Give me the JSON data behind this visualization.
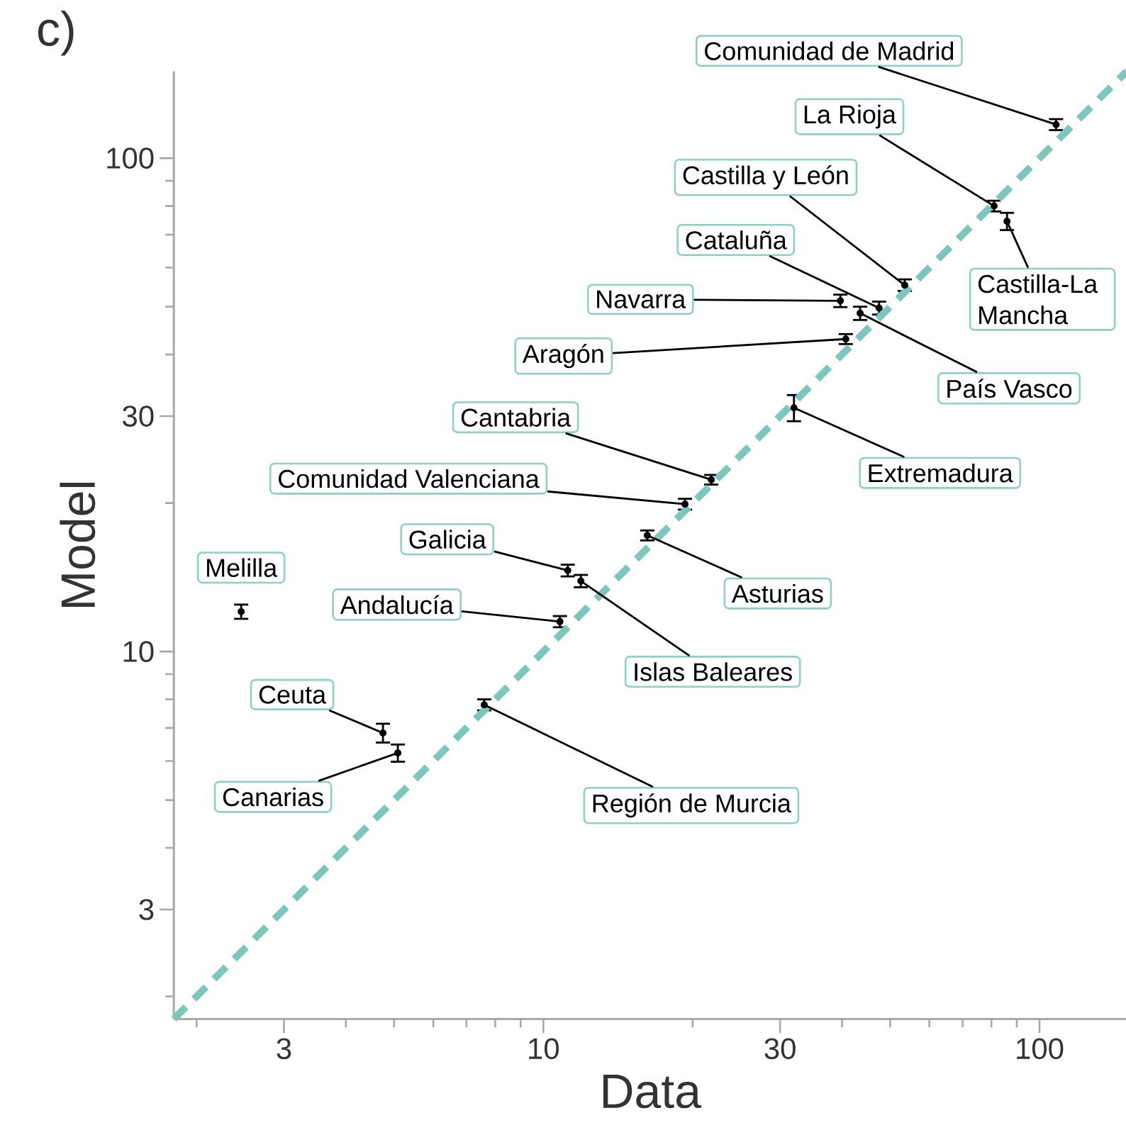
{
  "chart_data": {
    "type": "scatter",
    "title": "c)",
    "xlabel": "Data",
    "ylabel": "Model",
    "log": "xy",
    "xlim": [
      1.8,
      150
    ],
    "ylim": [
      1.8,
      150
    ],
    "xticks": [
      {
        "value": 2,
        "label": null
      },
      3,
      {
        "value": 4,
        "label": null
      },
      {
        "value": 5,
        "label": null
      },
      {
        "value": 6,
        "label": null
      },
      {
        "value": 7,
        "label": null
      },
      {
        "value": 8,
        "label": null
      },
      {
        "value": 9,
        "label": null
      },
      10,
      {
        "value": 20,
        "label": null
      },
      30,
      {
        "value": 40,
        "label": null
      },
      {
        "value": 50,
        "label": null
      },
      {
        "value": 60,
        "label": null
      },
      {
        "value": 70,
        "label": null
      },
      {
        "value": 80,
        "label": null
      },
      {
        "value": 90,
        "label": null
      },
      100
    ],
    "yticks": [
      {
        "value": 2,
        "label": null
      },
      3,
      {
        "value": 4,
        "label": null
      },
      {
        "value": 5,
        "label": null
      },
      {
        "value": 6,
        "label": null
      },
      {
        "value": 7,
        "label": null
      },
      {
        "value": 8,
        "label": null
      },
      {
        "value": 9,
        "label": null
      },
      10,
      {
        "value": 20,
        "label": null
      },
      30,
      {
        "value": 40,
        "label": null
      },
      {
        "value": 50,
        "label": null
      },
      {
        "value": 60,
        "label": null
      },
      {
        "value": 70,
        "label": null
      },
      {
        "value": 80,
        "label": null
      },
      {
        "value": 90,
        "label": null
      },
      100
    ],
    "series": [
      {
        "color": "#000000",
        "x": [
          108,
          81,
          86,
          53.5,
          47.5,
          43.5,
          39.7,
          40.7,
          32,
          21.8,
          19.3,
          16.2,
          11.2,
          11.9,
          10.8,
          2.46,
          4.75,
          5.09,
          7.6
        ],
        "values": [
          117,
          80,
          74.5,
          55.3,
          49.7,
          48.5,
          51.4,
          43,
          31.2,
          22.3,
          19.9,
          17.2,
          14.6,
          13.9,
          11.5,
          12.05,
          6.84,
          6.23,
          7.8
        ],
        "errors": [
          3,
          2,
          3,
          1.5,
          1.5,
          1.5,
          1.5,
          1,
          1.9,
          0.5,
          0.5,
          0.4,
          0.4,
          0.4,
          0.3,
          0.4,
          0.3,
          0.25,
          0.2
        ]
      },
      {
        "type": "line",
        "color": "#7cc7bc",
        "line_style": "dashed",
        "x": [
          1.8,
          150
        ],
        "values": [
          1.8,
          150
        ]
      }
    ],
    "annotations": [
      {
        "text": "Comunidad de Madrid",
        "x": 108,
        "y": 117
      },
      {
        "text": "La Rioja",
        "x": 81,
        "y": 80
      },
      {
        "text": "Castilla-La Mancha",
        "x": 86,
        "y": 74.5
      },
      {
        "text": "Castilla y León",
        "x": 53.5,
        "y": 55.3
      },
      {
        "text": "Cataluña",
        "x": 47.5,
        "y": 49.7
      },
      {
        "text": "País Vasco",
        "x": 43.5,
        "y": 48.5
      },
      {
        "text": "Navarra",
        "x": 39.7,
        "y": 51.4
      },
      {
        "text": "Aragón",
        "x": 40.7,
        "y": 43
      },
      {
        "text": "Extremadura",
        "x": 32,
        "y": 31.2
      },
      {
        "text": "Cantabria",
        "x": 21.8,
        "y": 22.3
      },
      {
        "text": "Comunidad Valenciana",
        "x": 19.3,
        "y": 19.9
      },
      {
        "text": "Asturias",
        "x": 16.2,
        "y": 17.2
      },
      {
        "text": "Galicia",
        "x": 11.2,
        "y": 14.6
      },
      {
        "text": "Islas Baleares",
        "x": 11.9,
        "y": 13.9
      },
      {
        "text": "Andalucía",
        "x": 10.8,
        "y": 11.5
      },
      {
        "text": "Melilla",
        "x": 2.46,
        "y": 12.05
      },
      {
        "text": "Ceuta",
        "x": 4.75,
        "y": 6.84
      },
      {
        "text": "Canarias",
        "x": 5.09,
        "y": 6.23
      },
      {
        "text": "Región de Murcia",
        "x": 7.6,
        "y": 7.8
      }
    ]
  }
}
